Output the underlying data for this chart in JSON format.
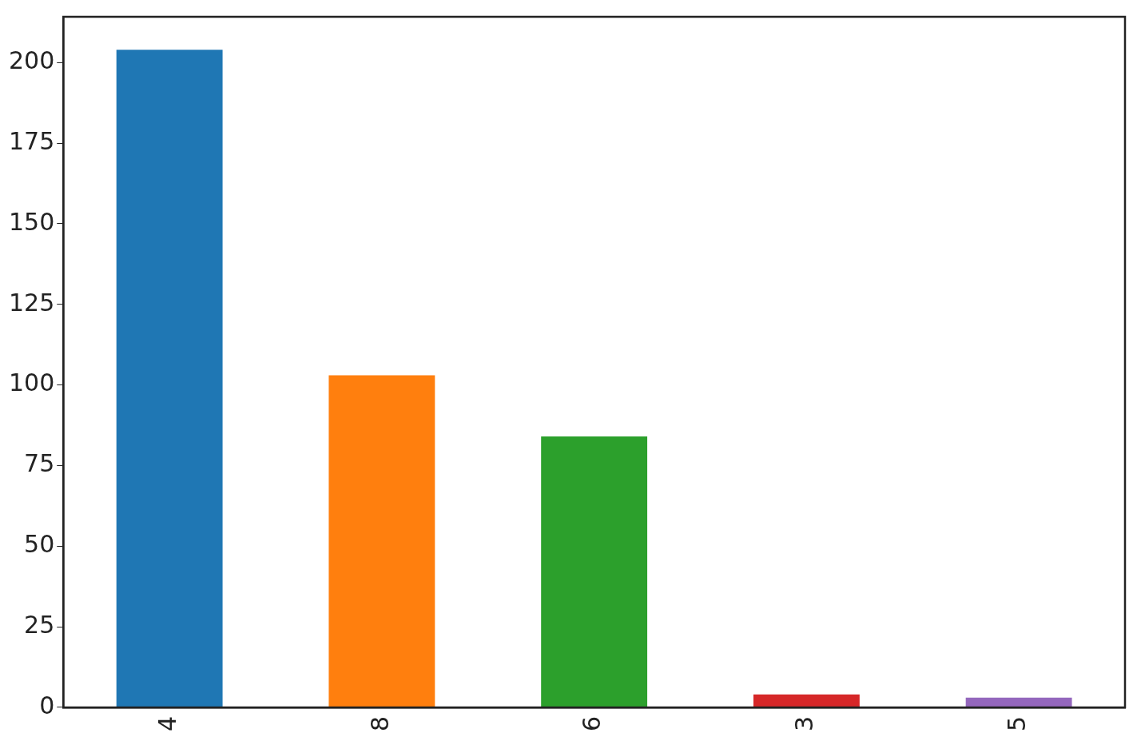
{
  "chart_data": {
    "type": "bar",
    "categories": [
      "4",
      "8",
      "6",
      "3",
      "5"
    ],
    "values": [
      204,
      103,
      84,
      4,
      3
    ],
    "colors": [
      "#1f77b4",
      "#ff7f0e",
      "#2ca02c",
      "#d62728",
      "#9467bd"
    ],
    "ylim": [
      0,
      214.2
    ],
    "yticks": [
      0,
      25,
      50,
      75,
      100,
      125,
      150,
      175,
      200
    ],
    "legend": false
  }
}
